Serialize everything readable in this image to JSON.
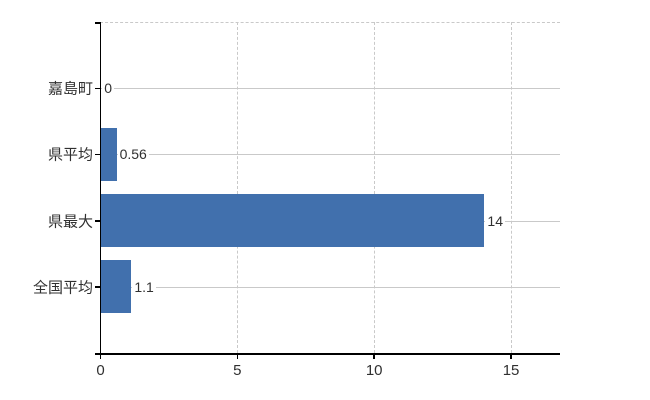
{
  "chart_data": {
    "type": "bar",
    "orientation": "horizontal",
    "title": "",
    "xlabel": "",
    "ylabel": "",
    "categories": [
      "嘉島町",
      "県平均",
      "県最大",
      "全国平均"
    ],
    "values": [
      0,
      0.56,
      14,
      1.1
    ],
    "value_labels": [
      "0",
      "0.56",
      "14",
      "1.1"
    ],
    "x_ticks": [
      0,
      5,
      10,
      15
    ],
    "x_tick_labels": [
      "0",
      "5",
      "10",
      "15"
    ],
    "xlim": [
      0,
      16.8
    ],
    "grid": "on",
    "legend_position": "none",
    "colors": {
      "bar": "#4170ad",
      "gridline": "#c9c9c9",
      "axis": "#000000",
      "text": "#303030",
      "background": "#ffffff"
    }
  }
}
